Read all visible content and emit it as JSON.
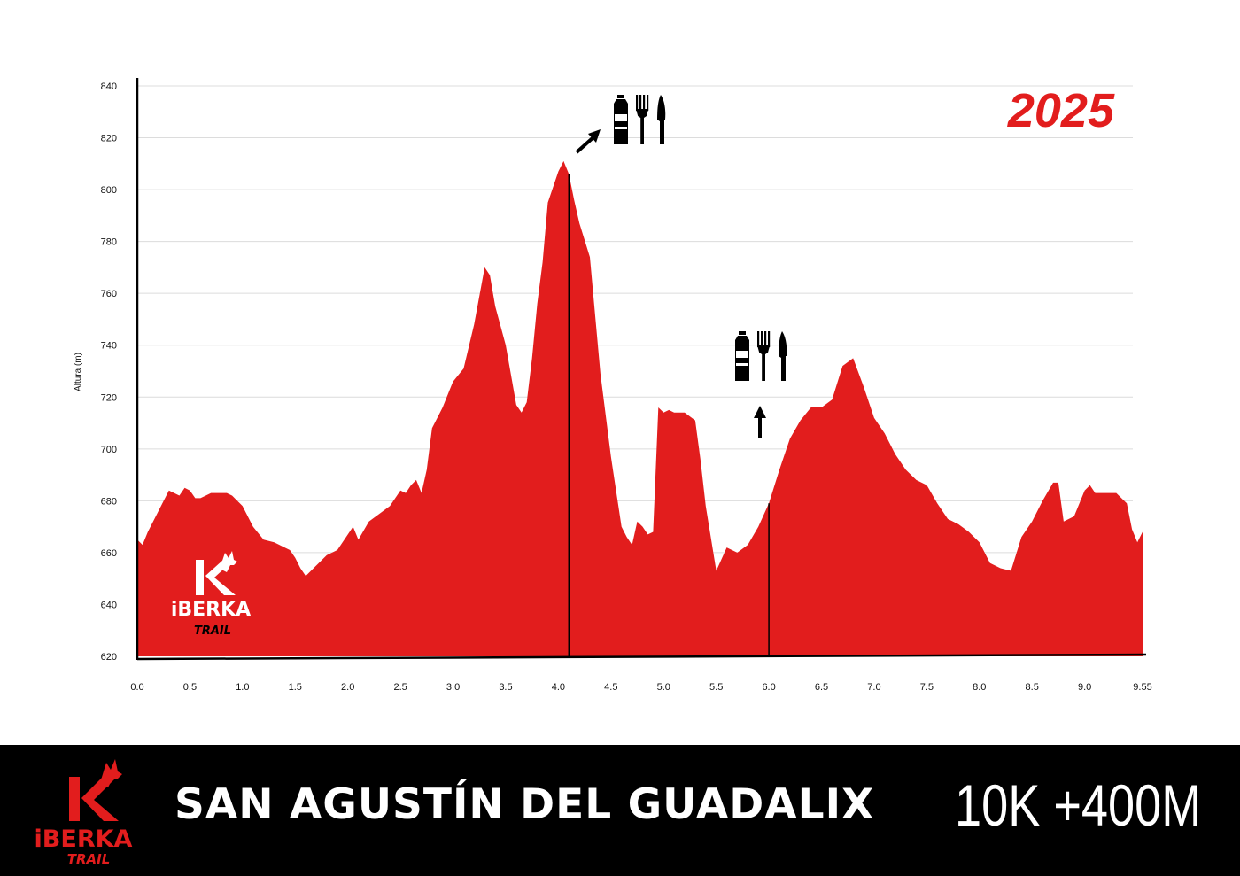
{
  "chart_data": {
    "type": "area",
    "year_label": "2025",
    "ylabel": "Altura (m)",
    "xlabel": "",
    "ylim": [
      620,
      840
    ],
    "xlim": [
      0,
      9.55
    ],
    "y_ticks": [
      "620",
      "640",
      "660",
      "680",
      "700",
      "720",
      "740",
      "760",
      "780",
      "800",
      "820",
      "840"
    ],
    "x_ticks": [
      "0.0",
      "0.5",
      "1.0",
      "1.5",
      "2.0",
      "2.5",
      "3.0",
      "3.5",
      "4.0",
      "4.5",
      "5.0",
      "5.5",
      "6.0",
      "6.5",
      "7.0",
      "7.5",
      "8.0",
      "8.5",
      "9.0",
      "9.55"
    ],
    "grid": true,
    "fill_color": "#e21d1d",
    "x": [
      0.0,
      0.05,
      0.1,
      0.2,
      0.3,
      0.4,
      0.45,
      0.5,
      0.55,
      0.6,
      0.65,
      0.7,
      0.75,
      0.8,
      0.85,
      0.9,
      1.0,
      1.1,
      1.2,
      1.3,
      1.35,
      1.4,
      1.45,
      1.5,
      1.55,
      1.6,
      1.7,
      1.8,
      1.9,
      2.0,
      2.05,
      2.1,
      2.2,
      2.3,
      2.4,
      2.5,
      2.55,
      2.6,
      2.65,
      2.7,
      2.75,
      2.8,
      2.9,
      3.0,
      3.1,
      3.2,
      3.3,
      3.35,
      3.4,
      3.5,
      3.6,
      3.65,
      3.7,
      3.75,
      3.8,
      3.85,
      3.9,
      4.0,
      4.05,
      4.1,
      4.15,
      4.2,
      4.3,
      4.4,
      4.5,
      4.6,
      4.65,
      4.7,
      4.75,
      4.8,
      4.85,
      4.9,
      4.95,
      5.0,
      5.05,
      5.1,
      5.15,
      5.2,
      5.3,
      5.35,
      5.4,
      5.5,
      5.6,
      5.7,
      5.8,
      5.9,
      6.0,
      6.1,
      6.2,
      6.3,
      6.4,
      6.45,
      6.5,
      6.6,
      6.7,
      6.8,
      6.9,
      7.0,
      7.1,
      7.2,
      7.3,
      7.4,
      7.5,
      7.6,
      7.7,
      7.8,
      7.9,
      8.0,
      8.1,
      8.2,
      8.3,
      8.4,
      8.5,
      8.6,
      8.7,
      8.75,
      8.8,
      8.9,
      9.0,
      9.05,
      9.1,
      9.2,
      9.3,
      9.4,
      9.45,
      9.5,
      9.55
    ],
    "y": [
      665,
      663,
      668,
      676,
      684,
      682,
      685,
      684,
      681,
      681,
      682,
      683,
      683,
      683,
      683,
      682,
      678,
      670,
      665,
      664,
      663,
      662,
      661,
      658,
      654,
      651,
      655,
      659,
      661,
      667,
      670,
      665,
      672,
      675,
      678,
      684,
      683,
      686,
      688,
      683,
      692,
      708,
      716,
      726,
      731,
      748,
      770,
      767,
      755,
      740,
      717,
      714,
      718,
      735,
      756,
      772,
      795,
      807,
      811,
      806,
      796,
      787,
      774,
      729,
      697,
      670,
      666,
      663,
      672,
      670,
      667,
      668,
      716,
      714,
      715,
      714,
      714,
      714,
      711,
      696,
      678,
      653,
      662,
      660,
      663,
      670,
      679,
      692,
      704,
      711,
      716,
      716,
      716,
      719,
      732,
      735,
      724,
      712,
      706,
      698,
      692,
      688,
      686,
      679,
      673,
      671,
      668,
      664,
      656,
      654,
      653,
      666,
      672,
      680,
      687,
      687,
      672,
      674,
      684,
      686,
      683,
      683,
      683,
      679,
      669,
      664,
      668
    ],
    "aid_stations": [
      {
        "x": 4.1,
        "label_pos": "upper-right"
      },
      {
        "x": 6.0,
        "label_pos": "above"
      }
    ]
  },
  "brand": {
    "logo_letter": "K",
    "logo_word": "iBERKA",
    "logo_sub": "TRAIL"
  },
  "footer": {
    "route_title": "SAN AGUSTÍN DEL GUADALIX",
    "race_stats": "10K +400M"
  },
  "icons": [
    "water-bottle-icon",
    "fork-icon",
    "knife-icon",
    "arrow-icon",
    "wolf-head-icon"
  ]
}
